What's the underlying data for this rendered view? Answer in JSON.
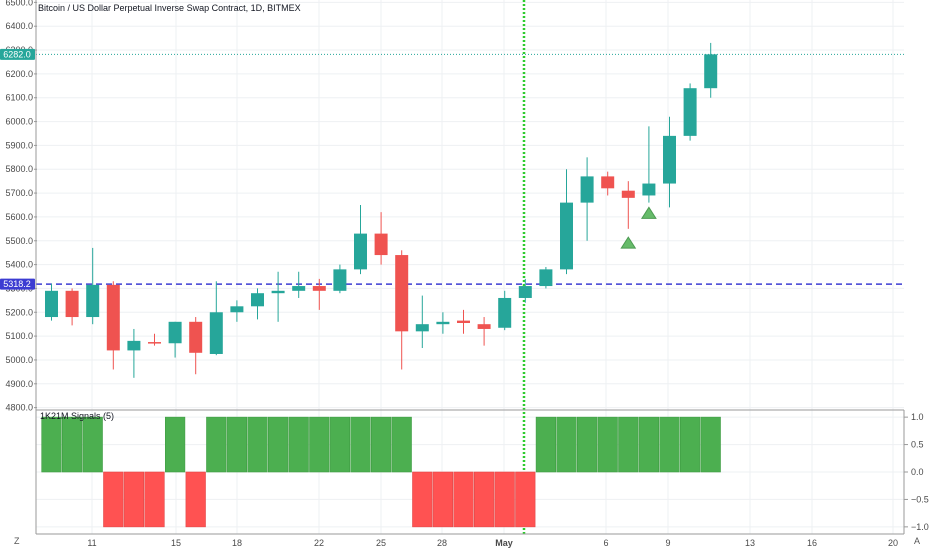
{
  "chart_title": "Bitcoin / US Dollar Perpetual Inverse Swap Contract, 1D, BITMEX",
  "last_price_label": "6282.0",
  "hline_label": "5318.2",
  "indicator_title": "1K21M Signals (5)",
  "corner_left": "Z",
  "corner_right": "A",
  "colors": {
    "up": "#26a69a",
    "down": "#ef5350",
    "signal_up": "#4caf50",
    "signal_down": "#ff5252",
    "hline": "#3c3cd2",
    "vline": "#2ecc2e",
    "triangle": "#66bb6a"
  },
  "chart_data": {
    "type": "candlestick",
    "x_tick_labels": [
      "11",
      "15",
      "18",
      "22",
      "25",
      "28",
      "May",
      "6",
      "9",
      "13",
      "16",
      "20"
    ],
    "y_ticks": [
      6500,
      6400,
      6300,
      6200,
      6100,
      6000,
      5900,
      5800,
      5700,
      5600,
      5500,
      5400,
      5300,
      5200,
      5100,
      5000,
      4900,
      4800
    ],
    "ylim": [
      4790,
      6510
    ],
    "last_price": 6282.0,
    "hline": 5318.2,
    "candles": [
      {
        "o": 5180,
        "h": 5320,
        "l": 5165,
        "c": 5290
      },
      {
        "o": 5290,
        "h": 5300,
        "l": 5145,
        "c": 5180
      },
      {
        "o": 5180,
        "h": 5470,
        "l": 5150,
        "c": 5315
      },
      {
        "o": 5315,
        "h": 5330,
        "l": 4960,
        "c": 5040
      },
      {
        "o": 5040,
        "h": 5130,
        "l": 4925,
        "c": 5080
      },
      {
        "o": 5075,
        "h": 5110,
        "l": 5060,
        "c": 5070
      },
      {
        "o": 5070,
        "h": 5160,
        "l": 5010,
        "c": 5160
      },
      {
        "o": 5160,
        "h": 5180,
        "l": 4940,
        "c": 5030
      },
      {
        "o": 5025,
        "h": 5330,
        "l": 5020,
        "c": 5200
      },
      {
        "o": 5200,
        "h": 5250,
        "l": 5160,
        "c": 5225
      },
      {
        "o": 5225,
        "h": 5300,
        "l": 5170,
        "c": 5280
      },
      {
        "o": 5280,
        "h": 5370,
        "l": 5160,
        "c": 5290
      },
      {
        "o": 5290,
        "h": 5370,
        "l": 5260,
        "c": 5310
      },
      {
        "o": 5310,
        "h": 5340,
        "l": 5210,
        "c": 5290
      },
      {
        "o": 5290,
        "h": 5400,
        "l": 5280,
        "c": 5380
      },
      {
        "o": 5380,
        "h": 5650,
        "l": 5360,
        "c": 5530
      },
      {
        "o": 5530,
        "h": 5620,
        "l": 5400,
        "c": 5440
      },
      {
        "o": 5440,
        "h": 5460,
        "l": 4960,
        "c": 5120
      },
      {
        "o": 5120,
        "h": 5270,
        "l": 5050,
        "c": 5150
      },
      {
        "o": 5150,
        "h": 5200,
        "l": 5110,
        "c": 5160
      },
      {
        "o": 5165,
        "h": 5210,
        "l": 5110,
        "c": 5155
      },
      {
        "o": 5150,
        "h": 5180,
        "l": 5060,
        "c": 5130
      },
      {
        "o": 5135,
        "h": 5290,
        "l": 5125,
        "c": 5260
      },
      {
        "o": 5260,
        "h": 5340,
        "l": 5240,
        "c": 5310
      },
      {
        "o": 5310,
        "h": 5390,
        "l": 5300,
        "c": 5380
      },
      {
        "o": 5380,
        "h": 5800,
        "l": 5360,
        "c": 5660
      },
      {
        "o": 5660,
        "h": 5850,
        "l": 5500,
        "c": 5770
      },
      {
        "o": 5770,
        "h": 5790,
        "l": 5690,
        "c": 5720
      },
      {
        "o": 5710,
        "h": 5750,
        "l": 5550,
        "c": 5680
      },
      {
        "o": 5690,
        "h": 5980,
        "l": 5660,
        "c": 5740
      },
      {
        "o": 5740,
        "h": 6020,
        "l": 5640,
        "c": 5940
      },
      {
        "o": 5940,
        "h": 6160,
        "l": 5920,
        "c": 6140
      },
      {
        "o": 6140,
        "h": 6330,
        "l": 6100,
        "c": 6282
      }
    ],
    "signal": {
      "title": "1K21M Signals (5)",
      "y_ticks": [
        1.0,
        0.5,
        0.0,
        -0.5,
        -1.0
      ],
      "y_tick_labels": [
        "1.0",
        "0.5",
        "0.0",
        "−0.5",
        "−1.0"
      ],
      "ylim": [
        -1.13,
        1.13
      ],
      "values": [
        1,
        1,
        1,
        -1,
        -1,
        -1,
        1,
        -1,
        1,
        1,
        1,
        1,
        1,
        1,
        1,
        1,
        1,
        1,
        -1,
        -1,
        -1,
        -1,
        -1,
        -1,
        1,
        1,
        1,
        1,
        1,
        1,
        1,
        1,
        1
      ]
    },
    "triangles": [
      {
        "candle": 28,
        "value": 5490
      },
      {
        "candle": 29,
        "value": 5615
      }
    ]
  }
}
